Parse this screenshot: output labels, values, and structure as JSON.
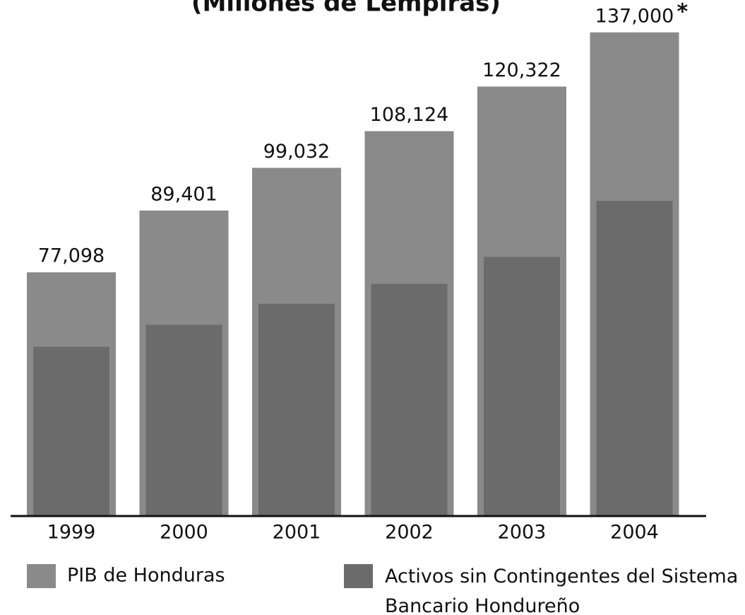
{
  "chart_data": {
    "type": "bar",
    "title": "(Millones de Lempiras)",
    "categories": [
      "1999",
      "2000",
      "2001",
      "2002",
      "2003",
      "2004"
    ],
    "series": [
      {
        "name": "PIB de Honduras",
        "color": "#8a8a8a",
        "values": [
          77098,
          89401,
          99032,
          108124,
          120322,
          137000
        ],
        "value_labels": [
          "77,098",
          "89,401",
          "99,032",
          "108,124",
          "120,322",
          "137,000"
        ]
      },
      {
        "name": "Activos sin Contingentes del Sistema Bancario Hondureño",
        "color": "#6b6b6b",
        "values": [
          64500,
          68000,
          71500,
          75000,
          80000,
          91500
        ]
      }
    ],
    "annotation": "*",
    "ylim": [
      43000,
      140000
    ],
    "log_scale": true
  }
}
